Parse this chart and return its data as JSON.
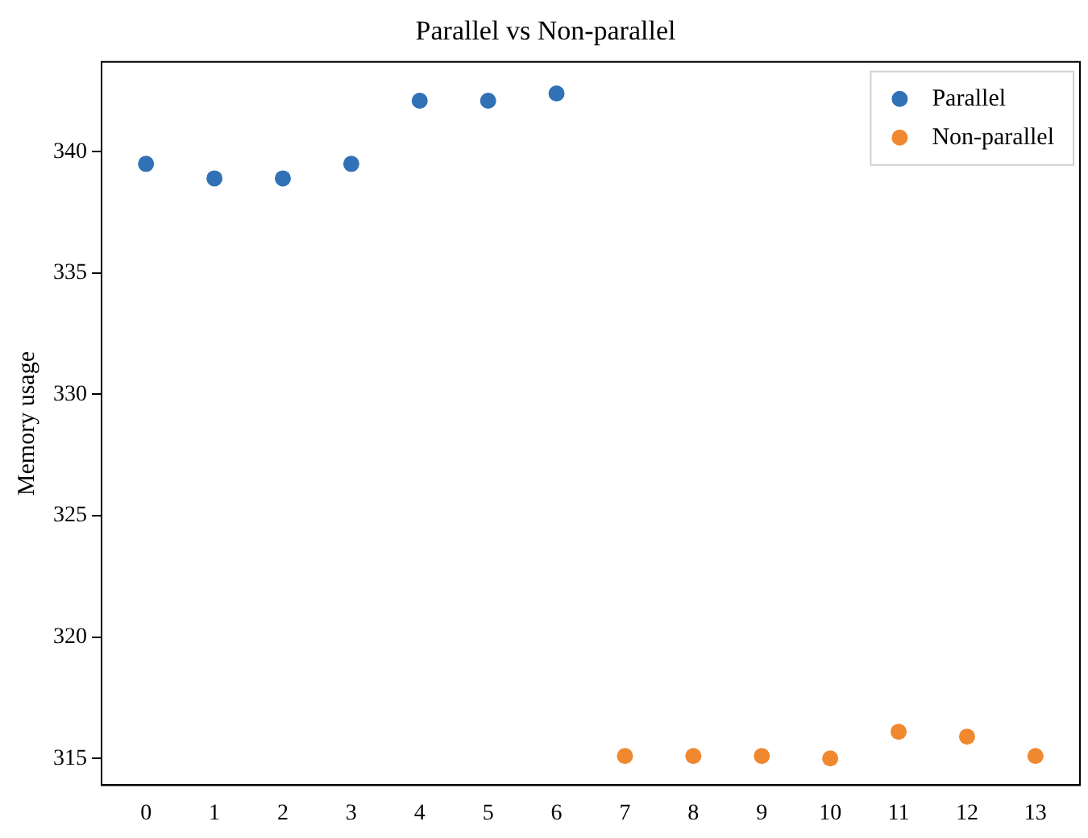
{
  "chart_data": {
    "type": "scatter",
    "title": "Parallel vs Non-parallel",
    "ylabel": "Memory usage",
    "xlim": [
      -0.65,
      13.65
    ],
    "xticks": [
      0,
      1,
      2,
      3,
      4,
      5,
      6,
      7,
      8,
      9,
      10,
      11,
      12,
      13
    ],
    "ylim": [
      313.9,
      343.7
    ],
    "yticks": [
      315,
      320,
      325,
      330,
      335,
      340
    ],
    "grid": false,
    "legend": "top right",
    "marker": "circle",
    "series": [
      {
        "name": "Parallel",
        "color": "#3171b5",
        "x": [
          0,
          1,
          2,
          3,
          4,
          5,
          6
        ],
        "values": [
          339.5,
          338.9,
          338.9,
          339.5,
          342.1,
          342.1,
          342.4
        ]
      },
      {
        "name": "Non-parallel",
        "color": "#f0882f",
        "x": [
          7,
          8,
          9,
          10,
          11,
          12,
          13
        ],
        "values": [
          315.1,
          315.1,
          315.1,
          315.0,
          316.1,
          315.9,
          315.1
        ]
      }
    ]
  }
}
